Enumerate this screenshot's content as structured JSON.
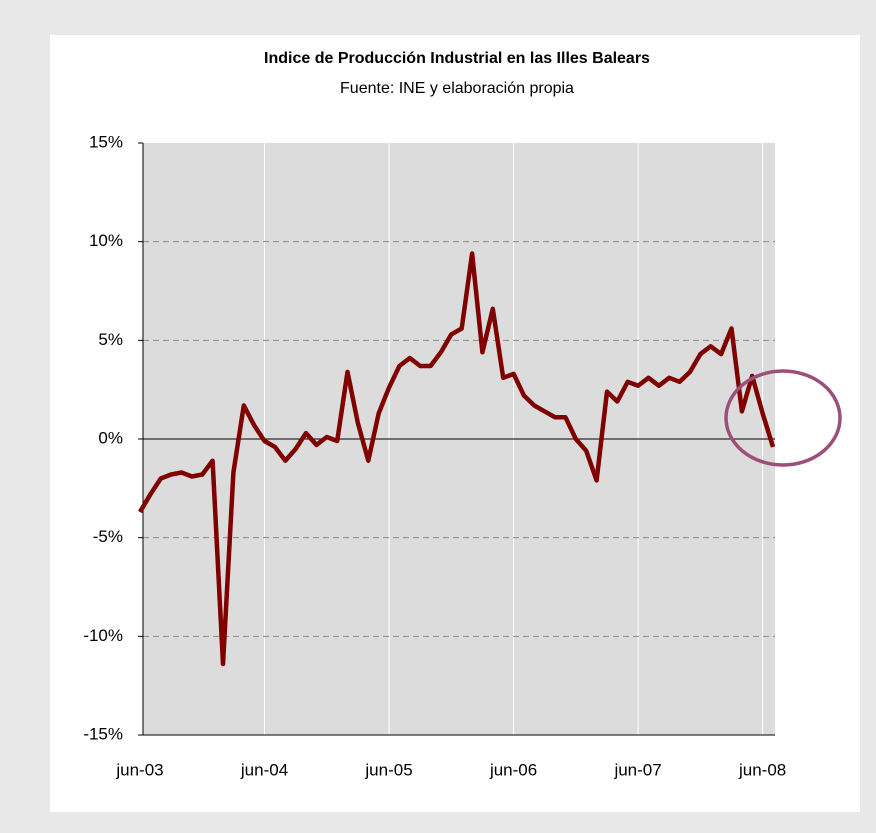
{
  "chart_data": {
    "type": "line",
    "title": "Indice de Producción Industrial en las Illes Balears",
    "subtitle": "Fuente: INE y elaboración propia",
    "categories": [
      "jun-03",
      null,
      null,
      null,
      null,
      null,
      null,
      null,
      null,
      null,
      null,
      null,
      "jun-04",
      null,
      null,
      null,
      null,
      null,
      null,
      null,
      null,
      null,
      null,
      null,
      "jun-05",
      null,
      null,
      null,
      null,
      null,
      null,
      null,
      null,
      null,
      null,
      null,
      "jun-06",
      null,
      null,
      null,
      null,
      null,
      null,
      null,
      null,
      null,
      null,
      null,
      "jun-07",
      null,
      null,
      null,
      null,
      null,
      null,
      null,
      null,
      null,
      null,
      null,
      "jun-08",
      null
    ],
    "series": [
      {
        "color": "#800000",
        "values": [
          -3.7,
          -2.8,
          -2.0,
          -1.8,
          -1.7,
          -1.9,
          -1.8,
          -1.1,
          -11.4,
          -1.7,
          1.7,
          0.7,
          -0.1,
          -0.4,
          -1.1,
          -0.5,
          0.3,
          -0.3,
          0.1,
          -0.1,
          3.4,
          0.8,
          -1.1,
          1.3,
          2.6,
          3.7,
          4.1,
          3.7,
          3.7,
          4.4,
          5.3,
          5.6,
          9.4,
          4.4,
          6.6,
          3.1,
          3.3,
          2.2,
          1.7,
          1.4,
          1.1,
          1.1,
          0.0,
          -0.6,
          -2.1,
          2.4,
          1.9,
          2.9,
          2.7,
          3.1,
          2.7,
          3.1,
          2.9,
          3.4,
          4.3,
          4.7,
          4.3,
          5.6,
          1.4,
          3.2,
          1.3,
          -0.4
        ]
      }
    ],
    "ylim": [
      -15,
      15
    ],
    "yticks": [
      {
        "value": -15,
        "label": "-15%"
      },
      {
        "value": -10,
        "label": "-10%"
      },
      {
        "value": -5,
        "label": "-5%"
      },
      {
        "value": 0,
        "label": "0%"
      },
      {
        "value": 5,
        "label": "5%"
      },
      {
        "value": 10,
        "label": "10%"
      },
      {
        "value": 15,
        "label": "15%"
      }
    ],
    "grid": true
  }
}
